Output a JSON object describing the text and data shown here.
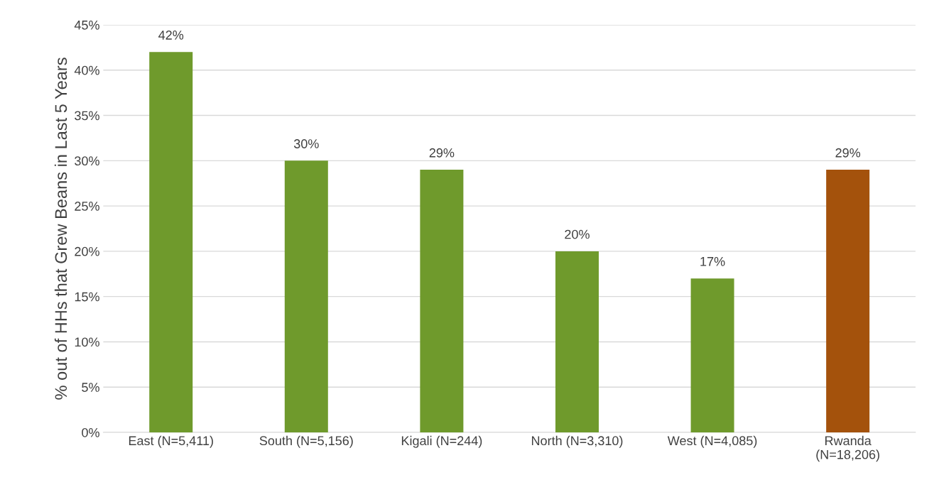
{
  "chart_data": {
    "type": "bar",
    "ylabel": "% out of HHs that Grew Beans in Last 5 Years",
    "categories": [
      "East (N=5,411)",
      "South (N=5,156)",
      "Kigali (N=244)",
      "North (N=3,310)",
      "West (N=4,085)",
      "Rwanda\n(N=18,206)"
    ],
    "values": [
      42,
      30,
      29,
      20,
      17,
      29
    ],
    "colors": [
      "#6f9a2c",
      "#6f9a2c",
      "#6f9a2c",
      "#6f9a2c",
      "#6f9a2c",
      "#a4520c"
    ],
    "value_labels": [
      "42%",
      "30%",
      "29%",
      "20%",
      "17%",
      "29%"
    ],
    "ylim": [
      0,
      45
    ],
    "yticks": [
      {
        "value": 0,
        "label": "0%"
      },
      {
        "value": 5,
        "label": "5%"
      },
      {
        "value": 10,
        "label": "10%"
      },
      {
        "value": 15,
        "label": "15%"
      },
      {
        "value": 20,
        "label": "20%"
      },
      {
        "value": 25,
        "label": "25%"
      },
      {
        "value": 30,
        "label": "30%"
      },
      {
        "value": 35,
        "label": "35%"
      },
      {
        "value": 40,
        "label": "40%"
      },
      {
        "value": 45,
        "label": "45%"
      }
    ],
    "grid": "y"
  }
}
